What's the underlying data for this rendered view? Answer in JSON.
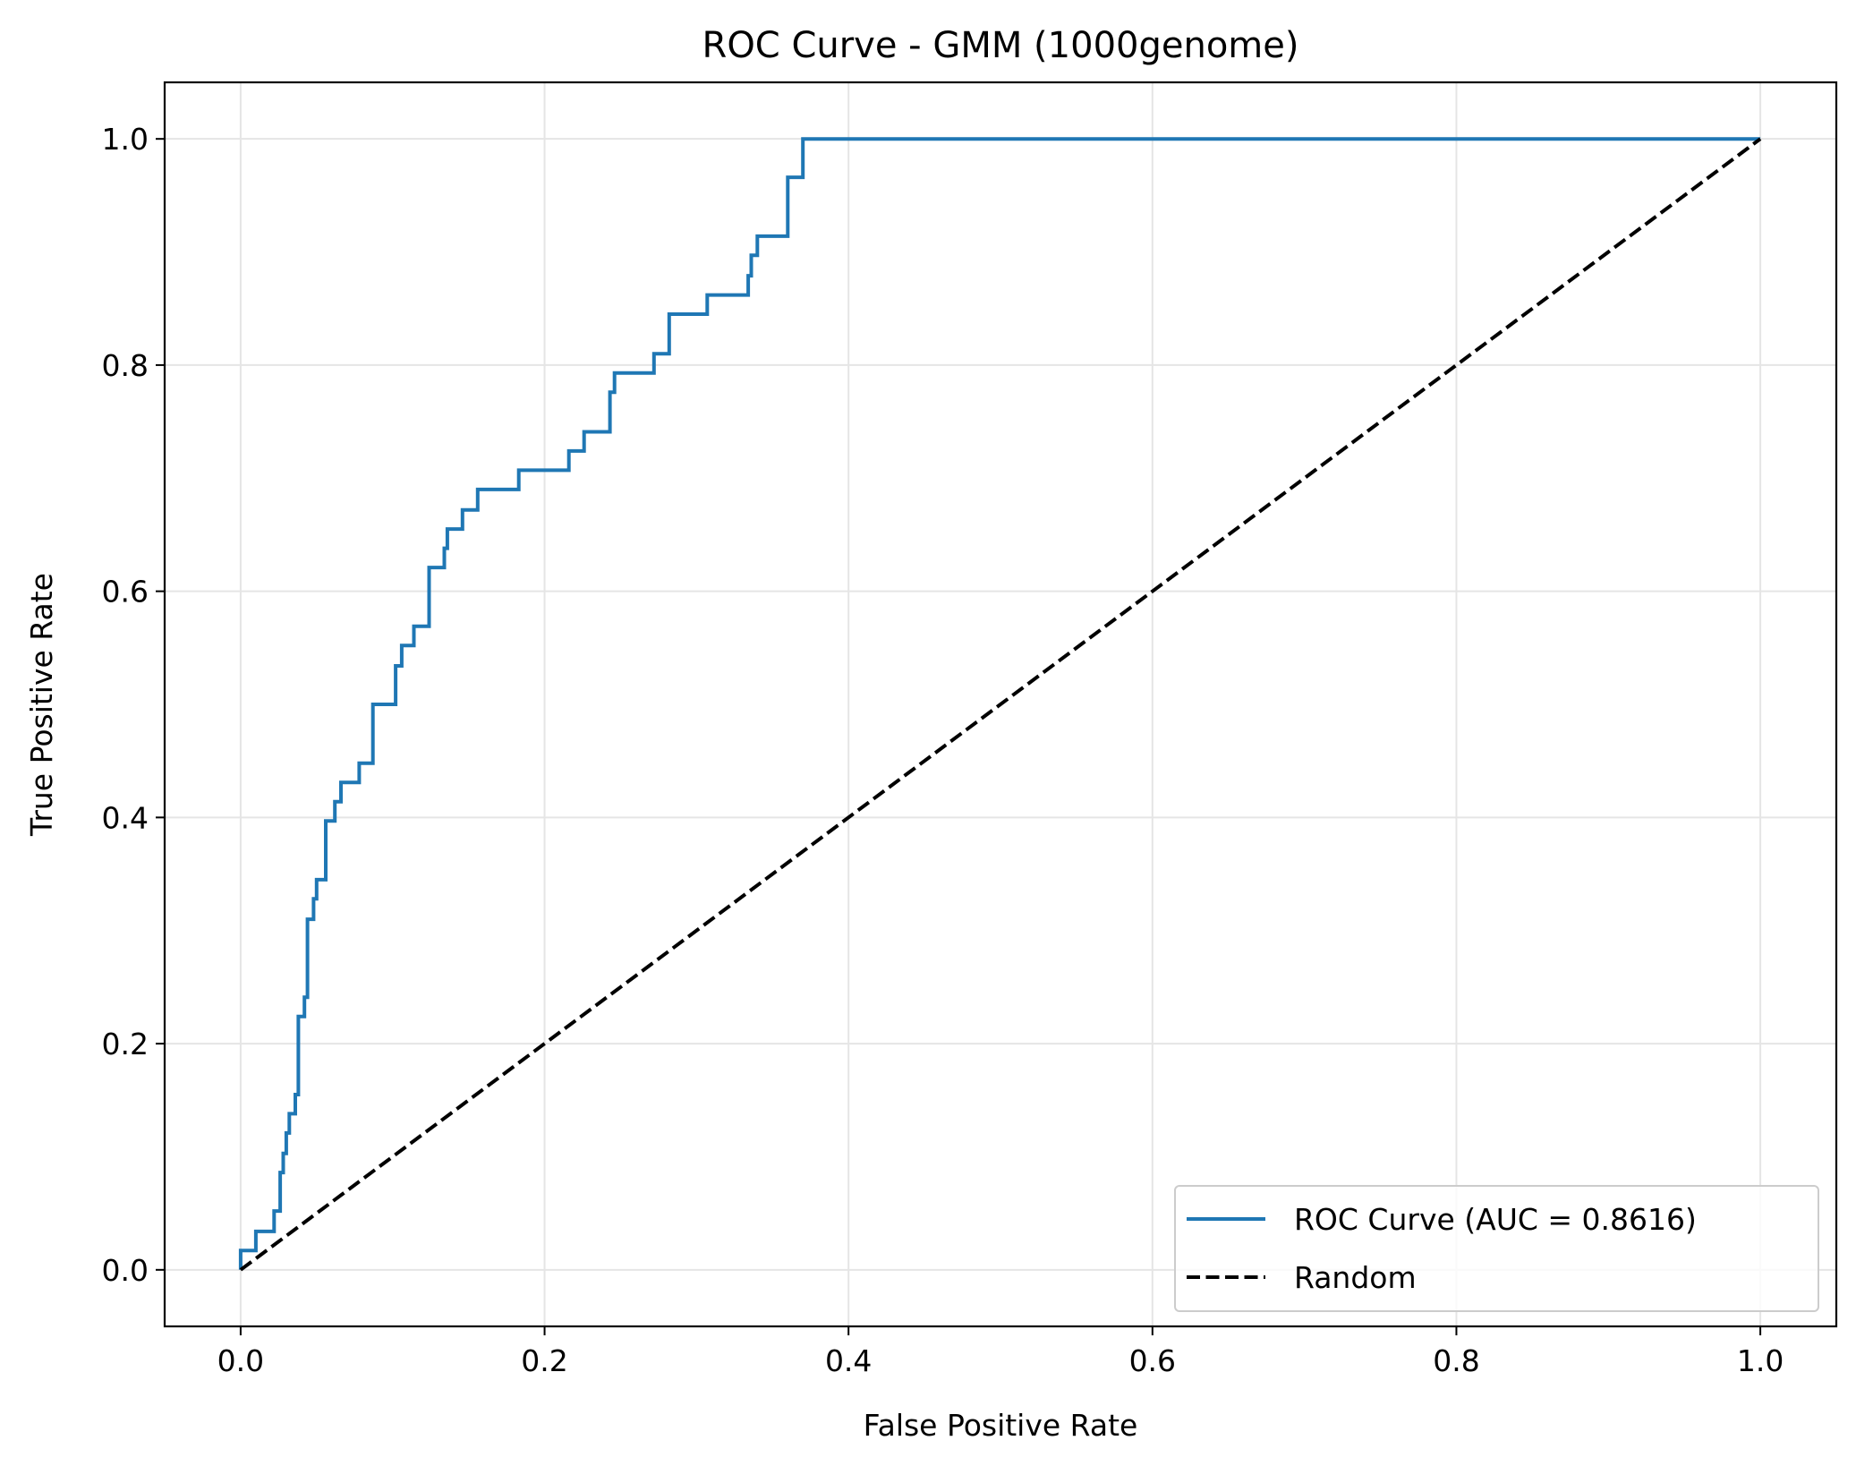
{
  "chart_data": {
    "type": "line",
    "title": "ROC Curve - GMM (1000genome)",
    "xlabel": "False Positive Rate",
    "ylabel": "True Positive Rate",
    "xlim": [
      -0.05,
      1.05
    ],
    "ylim": [
      -0.05,
      1.05
    ],
    "xticks": [
      0.0,
      0.2,
      0.4,
      0.6,
      0.8,
      1.0
    ],
    "yticks": [
      0.0,
      0.2,
      0.4,
      0.6,
      0.8,
      1.0
    ],
    "xtick_labels": [
      "0.0",
      "0.2",
      "0.4",
      "0.6",
      "0.8",
      "1.0"
    ],
    "ytick_labels": [
      "0.0",
      "0.2",
      "0.4",
      "0.6",
      "0.8",
      "1.0"
    ],
    "grid": true,
    "legend_position": "lower right",
    "series": [
      {
        "name": "ROC Curve (AUC = 0.8616)",
        "color": "#1f77b4",
        "style": "solid",
        "step": true,
        "x": [
          0.0,
          0.0,
          0.01,
          0.01,
          0.022,
          0.022,
          0.026,
          0.026,
          0.028,
          0.028,
          0.03,
          0.03,
          0.032,
          0.032,
          0.036,
          0.036,
          0.038,
          0.038,
          0.042,
          0.042,
          0.044,
          0.044,
          0.048,
          0.048,
          0.05,
          0.05,
          0.056,
          0.056,
          0.062,
          0.062,
          0.066,
          0.066,
          0.078,
          0.078,
          0.087,
          0.087,
          0.102,
          0.102,
          0.106,
          0.106,
          0.114,
          0.114,
          0.124,
          0.124,
          0.134,
          0.134,
          0.136,
          0.136,
          0.146,
          0.146,
          0.156,
          0.156,
          0.183,
          0.183,
          0.216,
          0.216,
          0.226,
          0.226,
          0.243,
          0.243,
          0.246,
          0.246,
          0.272,
          0.272,
          0.282,
          0.282,
          0.307,
          0.307,
          0.334,
          0.334,
          0.336,
          0.336,
          0.34,
          0.34,
          0.36,
          0.36,
          0.37,
          0.37,
          1.0
        ],
        "y": [
          0.0,
          0.017,
          0.017,
          0.034,
          0.034,
          0.052,
          0.052,
          0.086,
          0.086,
          0.103,
          0.103,
          0.121,
          0.121,
          0.138,
          0.138,
          0.155,
          0.155,
          0.224,
          0.224,
          0.241,
          0.241,
          0.31,
          0.31,
          0.328,
          0.328,
          0.345,
          0.345,
          0.397,
          0.397,
          0.414,
          0.414,
          0.431,
          0.431,
          0.448,
          0.448,
          0.5,
          0.5,
          0.534,
          0.534,
          0.552,
          0.552,
          0.569,
          0.569,
          0.621,
          0.621,
          0.638,
          0.638,
          0.655,
          0.655,
          0.672,
          0.672,
          0.69,
          0.69,
          0.707,
          0.707,
          0.724,
          0.724,
          0.741,
          0.741,
          0.776,
          0.776,
          0.793,
          0.793,
          0.81,
          0.81,
          0.845,
          0.845,
          0.862,
          0.862,
          0.879,
          0.879,
          0.897,
          0.897,
          0.914,
          0.914,
          0.966,
          0.966,
          1.0,
          1.0
        ]
      },
      {
        "name": "Random",
        "color": "#000000",
        "style": "dashed",
        "x": [
          0.0,
          1.0
        ],
        "y": [
          0.0,
          1.0
        ]
      }
    ]
  }
}
